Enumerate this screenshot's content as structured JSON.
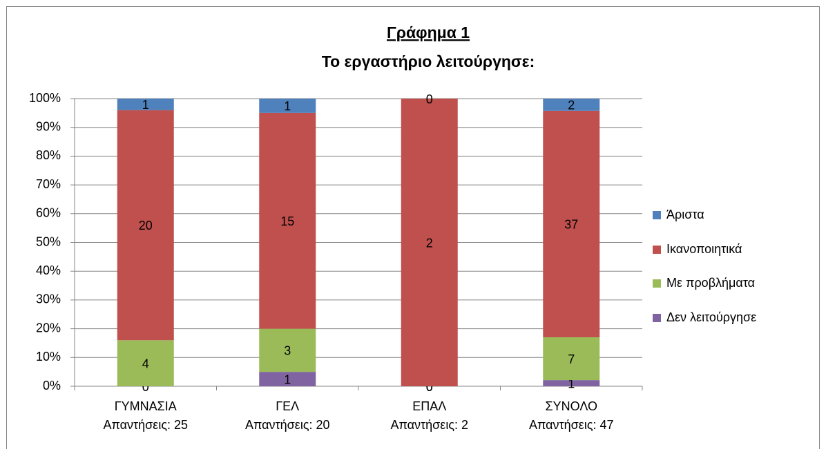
{
  "chart_data": {
    "type": "bar",
    "stacking": "percent",
    "title": "Γράφημα 1",
    "subtitle": "Το εργαστήριο λειτούργησε:",
    "categories": [
      [
        "ΓΥΜΝΑΣΙΑ",
        "Απαντήσεις: 25"
      ],
      [
        "ΓΕΛ",
        "Απαντήσεις: 20"
      ],
      [
        "ΕΠΑΛ",
        "Απαντήσεις: 2"
      ],
      [
        "ΣΥΝΟΛΟ",
        "Απαντήσεις: 47"
      ]
    ],
    "series": [
      {
        "name": "Δεν λειτούργησε",
        "color": "#8064a2",
        "values": [
          0,
          1,
          0,
          1
        ]
      },
      {
        "name": "Με προβλήματα",
        "color": "#9bbb59",
        "values": [
          4,
          3,
          0,
          7
        ]
      },
      {
        "name": "Ικανοποιητικά",
        "color": "#c0504d",
        "values": [
          20,
          15,
          2,
          37
        ]
      },
      {
        "name": "Άριστα",
        "color": "#4f81bd",
        "values": [
          1,
          1,
          0,
          2
        ]
      }
    ],
    "ylim": [
      0,
      100
    ],
    "yticks": [
      {
        "value": 0,
        "label": "0%"
      },
      {
        "value": 10,
        "label": "10%"
      },
      {
        "value": 20,
        "label": "20%"
      },
      {
        "value": 30,
        "label": "30%"
      },
      {
        "value": 40,
        "label": "40%"
      },
      {
        "value": 50,
        "label": "50%"
      },
      {
        "value": 60,
        "label": "60%"
      },
      {
        "value": 70,
        "label": "70%"
      },
      {
        "value": 80,
        "label": "80%"
      },
      {
        "value": 90,
        "label": "90%"
      },
      {
        "value": 100,
        "label": "100%"
      }
    ],
    "grid": true,
    "legend": "right"
  }
}
